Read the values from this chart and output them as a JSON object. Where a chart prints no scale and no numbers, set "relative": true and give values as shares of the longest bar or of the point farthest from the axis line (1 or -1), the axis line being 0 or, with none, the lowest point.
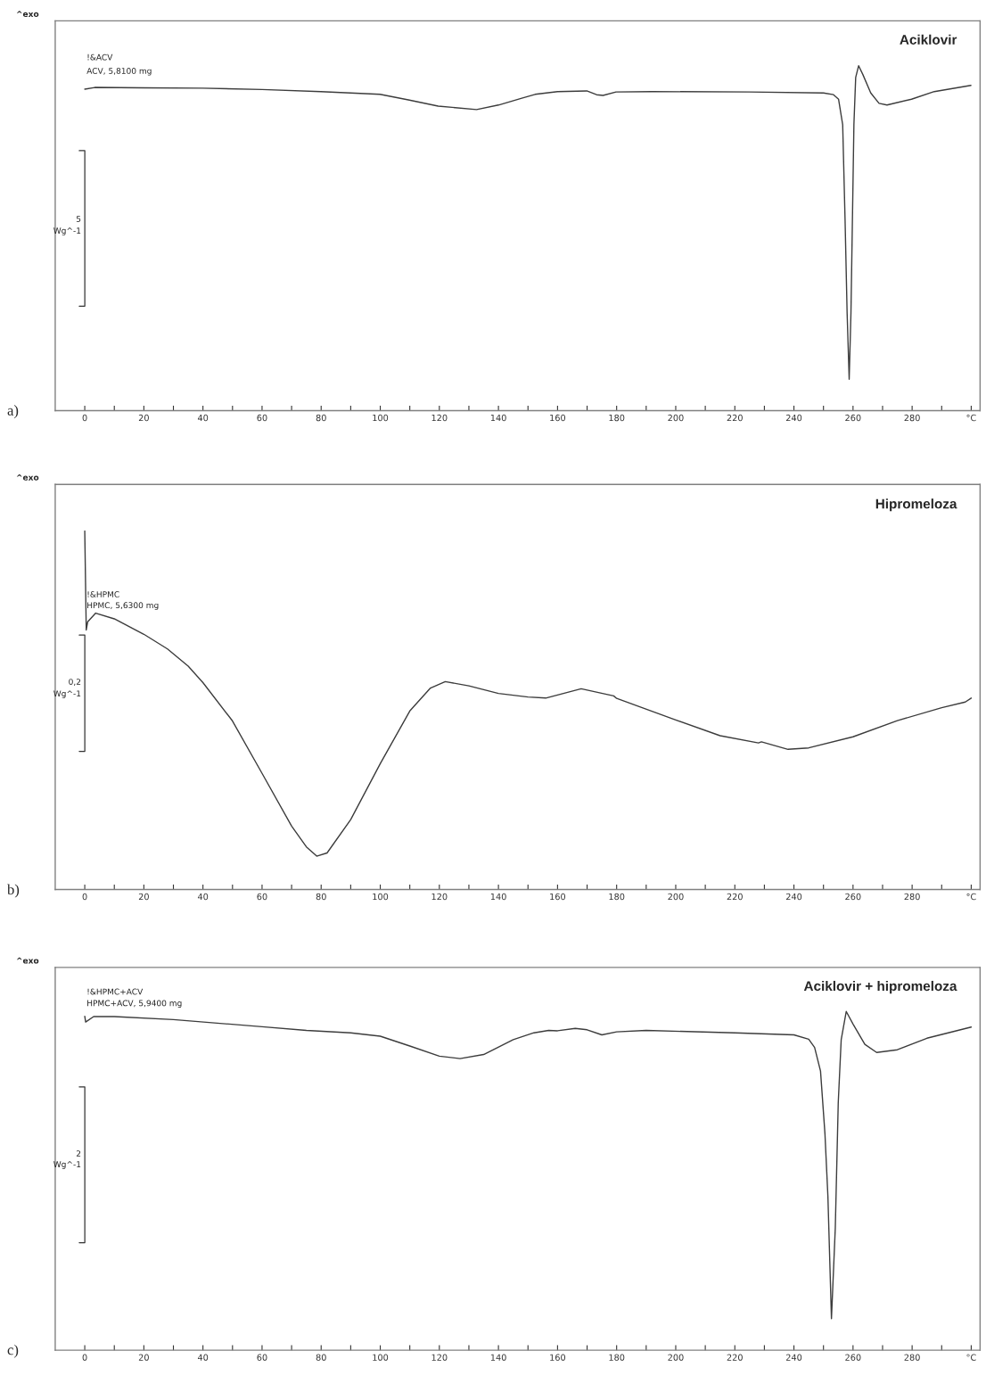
{
  "chart_data": [
    {
      "type": "line",
      "title": "Aciklovir",
      "relative": true,
      "annotations": [
        "^exo",
        "!&ACV",
        "ACV, 5,8100 mg",
        "5",
        "Wg^-1",
        "a)"
      ],
      "xlim": [
        -10,
        303
      ],
      "xticks": [
        0,
        {
          "value": 10,
          "label": null
        },
        20,
        {
          "value": 30,
          "label": null
        },
        40,
        {
          "value": 50,
          "label": null
        },
        60,
        {
          "value": 70,
          "label": null
        },
        80,
        {
          "value": 90,
          "label": null
        },
        100,
        {
          "value": 110,
          "label": null
        },
        120,
        {
          "value": 130,
          "label": null
        },
        140,
        {
          "value": 150,
          "label": null
        },
        160,
        {
          "value": 170,
          "label": null
        },
        180,
        {
          "value": 190,
          "label": null
        },
        200,
        {
          "value": 210,
          "label": null
        },
        220,
        {
          "value": 230,
          "label": null
        },
        240,
        {
          "value": 250,
          "label": null
        },
        260,
        {
          "value": 270,
          "label": null
        },
        280,
        {
          "value": 290,
          "label": null
        },
        {
          "value": 300,
          "label": "°C"
        }
      ],
      "series": [
        {
          "color": "#3c3c3c",
          "x": [
            0,
            3.4,
            19.9,
            39.8,
            60,
            79.9,
            99.9,
            109.5,
            119.6,
            132.6,
            140,
            147.9,
            152.4,
            160,
            169.9,
            173.2,
            175.4,
            179.8,
            191.9,
            224.8,
            250,
            253.4,
            255.1,
            256.5,
            257.3,
            258.0,
            258.7,
            259.3,
            259.8,
            260.3,
            260.9,
            261.9,
            263.3,
            266.0,
            268.8,
            271.5,
            279.8,
            287.5,
            299.9
          ],
          "values": [
            0.932,
            0.937,
            0.936,
            0.935,
            0.931,
            0.925,
            0.917,
            0.901,
            0.883,
            0.873,
            0.886,
            0.906,
            0.917,
            0.925,
            0.927,
            0.916,
            0.914,
            0.924,
            0.925,
            0.924,
            0.921,
            0.916,
            0.903,
            0.829,
            0.556,
            0.283,
            0.091,
            0.283,
            0.556,
            0.829,
            0.966,
            1,
            0.975,
            0.921,
            0.891,
            0.886,
            0.903,
            0.925,
            0.943
          ]
        }
      ]
    },
    {
      "type": "line",
      "title": "Hipromeloza",
      "relative": true,
      "annotations": [
        "^exo",
        "!&HPMC",
        "HPMC, 5,6300 mg",
        "0,2",
        "Wg^-1",
        "b)"
      ],
      "xlim": [
        -10,
        303
      ],
      "xticks": [
        0,
        {
          "value": 10,
          "label": null
        },
        20,
        {
          "value": 30,
          "label": null
        },
        40,
        {
          "value": 50,
          "label": null
        },
        60,
        {
          "value": 70,
          "label": null
        },
        80,
        {
          "value": 90,
          "label": null
        },
        100,
        {
          "value": 110,
          "label": null
        },
        120,
        {
          "value": 130,
          "label": null
        },
        140,
        {
          "value": 150,
          "label": null
        },
        160,
        {
          "value": 170,
          "label": null
        },
        180,
        {
          "value": 190,
          "label": null
        },
        200,
        {
          "value": 210,
          "label": null
        },
        220,
        {
          "value": 230,
          "label": null
        },
        240,
        {
          "value": 250,
          "label": null
        },
        260,
        {
          "value": 270,
          "label": null
        },
        280,
        {
          "value": 290,
          "label": null
        },
        {
          "value": 300,
          "label": "°C"
        }
      ],
      "series": [
        {
          "color": "#3c3c3c",
          "x": [
            0,
            0.5,
            1,
            3.7,
            10,
            20,
            28,
            35,
            40,
            50,
            60,
            70,
            75,
            78.5,
            82,
            90,
            100,
            110,
            117,
            122,
            130,
            140,
            150,
            156,
            168,
            179,
            180,
            200,
            215,
            228,
            229,
            238,
            245,
            260,
            275,
            290,
            298,
            300
          ],
          "values": [
            1,
            0.724,
            0.747,
            0.771,
            0.755,
            0.712,
            0.671,
            0.623,
            0.577,
            0.47,
            0.324,
            0.177,
            0.119,
            0.093,
            0.102,
            0.195,
            0.351,
            0.498,
            0.562,
            0.58,
            0.568,
            0.547,
            0.537,
            0.534,
            0.56,
            0.54,
            0.533,
            0.473,
            0.429,
            0.409,
            0.412,
            0.391,
            0.395,
            0.426,
            0.471,
            0.507,
            0.523,
            0.534
          ]
        }
      ]
    },
    {
      "type": "line",
      "title": "Aciklovir + hipromeloza",
      "relative": true,
      "annotations": [
        "^exo",
        "!&HPMC+ACV",
        "HPMC+ACV, 5,9400 mg",
        "2",
        "Wg^-1",
        "c)"
      ],
      "xlim": [
        -10,
        303
      ],
      "xticks": [
        0,
        {
          "value": 10,
          "label": null
        },
        20,
        {
          "value": 30,
          "label": null
        },
        40,
        {
          "value": 50,
          "label": null
        },
        60,
        {
          "value": 70,
          "label": null
        },
        80,
        {
          "value": 90,
          "label": null
        },
        100,
        {
          "value": 110,
          "label": null
        },
        120,
        {
          "value": 130,
          "label": null
        },
        140,
        {
          "value": 150,
          "label": null
        },
        160,
        {
          "value": 170,
          "label": null
        },
        180,
        {
          "value": 190,
          "label": null
        },
        200,
        {
          "value": 210,
          "label": null
        },
        220,
        {
          "value": 230,
          "label": null
        },
        240,
        {
          "value": 250,
          "label": null
        },
        260,
        {
          "value": 270,
          "label": null
        },
        280,
        {
          "value": 290,
          "label": null
        },
        {
          "value": 300,
          "label": "°C"
        }
      ],
      "series": [
        {
          "color": "#3c3c3c",
          "x": [
            0,
            0.3,
            3,
            10,
            30,
            60,
            75,
            90,
            100,
            110,
            120,
            127,
            135,
            145,
            152,
            157,
            160,
            166,
            170,
            175,
            180,
            190,
            220,
            240,
            245,
            247,
            249,
            250.5,
            251.5,
            252.7,
            254,
            255,
            256,
            257.7,
            260,
            264,
            268,
            275,
            285,
            300
          ],
          "values": [
            0.986,
            0.969,
            0.985,
            0.985,
            0.976,
            0.955,
            0.944,
            0.937,
            0.927,
            0.898,
            0.868,
            0.861,
            0.873,
            0.917,
            0.937,
            0.944,
            0.943,
            0.95,
            0.946,
            0.931,
            0.94,
            0.944,
            0.937,
            0.931,
            0.918,
            0.894,
            0.824,
            0.639,
            0.454,
            0.093,
            0.361,
            0.731,
            0.917,
            1,
            0.963,
            0.903,
            0.879,
            0.887,
            0.921,
            0.954
          ]
        }
      ]
    }
  ]
}
